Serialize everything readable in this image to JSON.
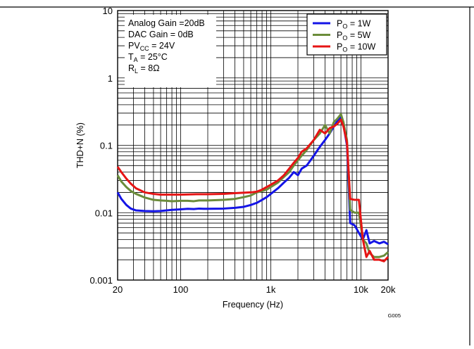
{
  "chart_data": {
    "type": "line",
    "xlabel": "Frequency (Hz)",
    "ylabel": "THD+N (%)",
    "x_scale": "log",
    "y_scale": "log",
    "xlim": [
      20,
      20000
    ],
    "ylim": [
      0.001,
      10
    ],
    "grid": true,
    "legend_position": "top-right",
    "figure_code": "G005",
    "x_ticks": [
      {
        "value": 20,
        "label": "20"
      },
      {
        "value": 100,
        "label": "100"
      },
      {
        "value": 1000,
        "label": "1k"
      },
      {
        "value": 10000,
        "label": "10k"
      },
      {
        "value": 20000,
        "label": "20k"
      }
    ],
    "y_ticks": [
      {
        "value": 0.001,
        "label": "0.001"
      },
      {
        "value": 0.01,
        "label": "0.01"
      },
      {
        "value": 0.1,
        "label": "0.1"
      },
      {
        "value": 1,
        "label": "1"
      },
      {
        "value": 10,
        "label": "10"
      }
    ],
    "conditions": [
      {
        "main": "Analog Gain =20dB",
        "sub": "",
        "tail": ""
      },
      {
        "main": "DAC Gain = 0dB",
        "sub": "",
        "tail": ""
      },
      {
        "main": "PV",
        "sub": "CC",
        "tail": " = 24V"
      },
      {
        "main": "T",
        "sub": "A",
        "tail": " = 25°C"
      },
      {
        "main": "R",
        "sub": "L",
        "tail": " = 8Ω"
      }
    ],
    "series": [
      {
        "name": "PO = 1W",
        "label_main": "P",
        "label_sub": "O",
        "label_tail": " = 1W",
        "color": "#1414e6",
        "points": [
          [
            20,
            0.02
          ],
          [
            22,
            0.016
          ],
          [
            25,
            0.013
          ],
          [
            28,
            0.0115
          ],
          [
            32,
            0.0108
          ],
          [
            40,
            0.0106
          ],
          [
            50,
            0.0105
          ],
          [
            60,
            0.0106
          ],
          [
            70,
            0.0108
          ],
          [
            80,
            0.011
          ],
          [
            100,
            0.0112
          ],
          [
            120,
            0.0114
          ],
          [
            140,
            0.0113
          ],
          [
            160,
            0.0115
          ],
          [
            180,
            0.0114
          ],
          [
            200,
            0.0114
          ],
          [
            300,
            0.0115
          ],
          [
            400,
            0.0118
          ],
          [
            500,
            0.0122
          ],
          [
            600,
            0.013
          ],
          [
            700,
            0.014
          ],
          [
            800,
            0.0155
          ],
          [
            900,
            0.017
          ],
          [
            1000,
            0.019
          ],
          [
            1200,
            0.023
          ],
          [
            1400,
            0.028
          ],
          [
            1600,
            0.033
          ],
          [
            1800,
            0.04
          ],
          [
            2000,
            0.036
          ],
          [
            2200,
            0.045
          ],
          [
            2500,
            0.05
          ],
          [
            3000,
            0.07
          ],
          [
            3500,
            0.095
          ],
          [
            4000,
            0.12
          ],
          [
            4500,
            0.15
          ],
          [
            5000,
            0.19
          ],
          [
            5500,
            0.23
          ],
          [
            6000,
            0.26
          ],
          [
            6400,
            0.2
          ],
          [
            7000,
            0.1
          ],
          [
            7600,
            0.007
          ],
          [
            8500,
            0.0065
          ],
          [
            9500,
            0.005
          ],
          [
            10500,
            0.004
          ],
          [
            11500,
            0.0055
          ],
          [
            12500,
            0.0035
          ],
          [
            14000,
            0.0038
          ],
          [
            16000,
            0.0035
          ],
          [
            18000,
            0.0037
          ],
          [
            20000,
            0.0034
          ]
        ]
      },
      {
        "name": "PO = 5W",
        "label_main": "P",
        "label_sub": "O",
        "label_tail": " = 5W",
        "color": "#6b8c3a",
        "points": [
          [
            20,
            0.036
          ],
          [
            22,
            0.029
          ],
          [
            25,
            0.024
          ],
          [
            28,
            0.021
          ],
          [
            32,
            0.019
          ],
          [
            40,
            0.0168
          ],
          [
            50,
            0.0155
          ],
          [
            60,
            0.0152
          ],
          [
            70,
            0.015
          ],
          [
            80,
            0.0148
          ],
          [
            100,
            0.015
          ],
          [
            120,
            0.015
          ],
          [
            140,
            0.0148
          ],
          [
            160,
            0.0152
          ],
          [
            200,
            0.0152
          ],
          [
            300,
            0.0155
          ],
          [
            400,
            0.016
          ],
          [
            500,
            0.017
          ],
          [
            600,
            0.018
          ],
          [
            700,
            0.02
          ],
          [
            800,
            0.021
          ],
          [
            900,
            0.022
          ],
          [
            1000,
            0.024
          ],
          [
            1200,
            0.028
          ],
          [
            1400,
            0.034
          ],
          [
            1600,
            0.04
          ],
          [
            1800,
            0.05
          ],
          [
            2000,
            0.06
          ],
          [
            2200,
            0.07
          ],
          [
            2500,
            0.085
          ],
          [
            3000,
            0.12
          ],
          [
            3500,
            0.15
          ],
          [
            4000,
            0.2
          ],
          [
            4500,
            0.15
          ],
          [
            5000,
            0.22
          ],
          [
            5500,
            0.25
          ],
          [
            6000,
            0.29
          ],
          [
            6400,
            0.22
          ],
          [
            7000,
            0.12
          ],
          [
            7600,
            0.011
          ],
          [
            8500,
            0.01
          ],
          [
            9500,
            0.01
          ],
          [
            10500,
            0.004
          ],
          [
            11500,
            0.0035
          ],
          [
            12500,
            0.0025
          ],
          [
            14000,
            0.0022
          ],
          [
            16000,
            0.0022
          ],
          [
            18000,
            0.0023
          ],
          [
            20000,
            0.0026
          ]
        ]
      },
      {
        "name": "PO = 10W",
        "label_main": "P",
        "label_sub": "O",
        "label_tail": " = 10W",
        "color": "#e61414",
        "points": [
          [
            20,
            0.048
          ],
          [
            22,
            0.04
          ],
          [
            25,
            0.032
          ],
          [
            28,
            0.027
          ],
          [
            32,
            0.023
          ],
          [
            40,
            0.02
          ],
          [
            50,
            0.019
          ],
          [
            60,
            0.0185
          ],
          [
            70,
            0.0185
          ],
          [
            80,
            0.0185
          ],
          [
            100,
            0.0185
          ],
          [
            150,
            0.0188
          ],
          [
            200,
            0.0188
          ],
          [
            300,
            0.019
          ],
          [
            400,
            0.0195
          ],
          [
            500,
            0.0198
          ],
          [
            600,
            0.02
          ],
          [
            700,
            0.0205
          ],
          [
            800,
            0.022
          ],
          [
            900,
            0.024
          ],
          [
            1000,
            0.026
          ],
          [
            1200,
            0.03
          ],
          [
            1400,
            0.036
          ],
          [
            1600,
            0.045
          ],
          [
            1800,
            0.055
          ],
          [
            2000,
            0.065
          ],
          [
            2200,
            0.08
          ],
          [
            2500,
            0.09
          ],
          [
            3000,
            0.12
          ],
          [
            3500,
            0.17
          ],
          [
            4000,
            0.15
          ],
          [
            4500,
            0.18
          ],
          [
            5000,
            0.19
          ],
          [
            5500,
            0.21
          ],
          [
            6000,
            0.24
          ],
          [
            6400,
            0.19
          ],
          [
            7000,
            0.11
          ],
          [
            7600,
            0.016
          ],
          [
            8500,
            0.0155
          ],
          [
            9500,
            0.0155
          ],
          [
            10500,
            0.004
          ],
          [
            11500,
            0.0022
          ],
          [
            12500,
            0.0027
          ],
          [
            14000,
            0.002
          ],
          [
            16000,
            0.002
          ],
          [
            18000,
            0.0019
          ],
          [
            20000,
            0.0022
          ]
        ]
      }
    ]
  }
}
